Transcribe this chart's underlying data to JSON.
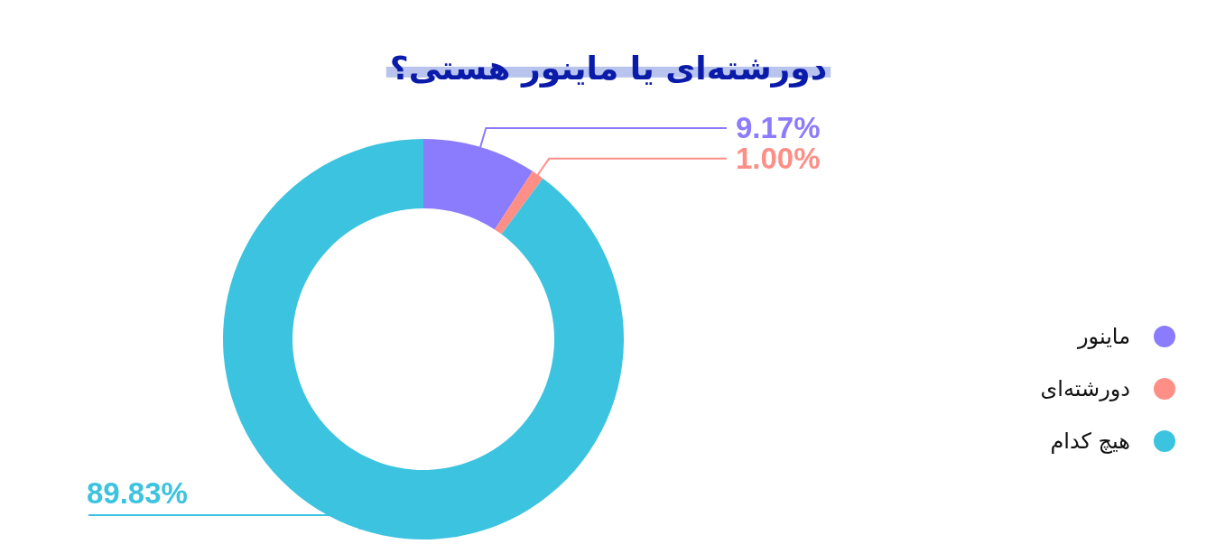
{
  "chart_data": {
    "type": "donut",
    "title": "دورشته‌ای یا ماینور هستی؟",
    "categories": [
      "ماینور",
      "دورشته‌ای",
      "هیچ کدام"
    ],
    "values": [
      9.17,
      1.0,
      89.83
    ],
    "colors": [
      "#8b7bfd",
      "#fe8f87",
      "#3cc3df"
    ],
    "value_labels": [
      "9.17%",
      "1.00%",
      "89.83%"
    ],
    "legend": "right"
  }
}
